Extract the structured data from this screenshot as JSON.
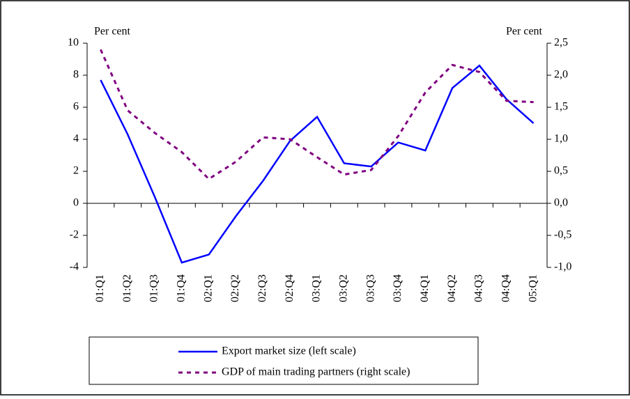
{
  "chart_data": {
    "type": "line",
    "y_label": "Per cent",
    "y2_label": "Per cent",
    "categories": [
      "01:Q1",
      "01:Q2",
      "01:Q3",
      "01:Q4",
      "02:Q1",
      "02:Q2",
      "02:Q3",
      "02:Q4",
      "03:Q1",
      "03:Q2",
      "03:Q3",
      "03:Q4",
      "04:Q1",
      "04:Q2",
      "04:Q3",
      "04:Q4",
      "05:Q1"
    ],
    "series": [
      {
        "name": "Export market size (left scale)",
        "color": "#0000ff",
        "values": [
          7.7,
          4.3,
          0.4,
          -3.7,
          -3.2,
          -0.8,
          1.4,
          3.9,
          5.4,
          2.5,
          2.3,
          3.8,
          3.3,
          7.2,
          8.6,
          6.5,
          5.0
        ]
      },
      {
        "name": "GDP of main trading partners (right scale)",
        "color": "#800080",
        "axis": "y2",
        "values": [
          2.4,
          1.45,
          1.1,
          0.8,
          0.38,
          0.65,
          1.03,
          1.0,
          0.72,
          0.45,
          0.52,
          1.05,
          1.73,
          2.16,
          2.05,
          1.6,
          1.58
        ]
      }
    ],
    "ylim": [
      -4,
      10
    ],
    "yticks": [
      -4,
      -2,
      0,
      2,
      4,
      6,
      8,
      10
    ],
    "y2lim": [
      -1,
      2.5
    ],
    "y2ticks": [
      {
        "value": -1,
        "label": "-1,0"
      },
      {
        "value": -0.5,
        "label": "-0,5"
      },
      {
        "value": 0,
        "label": "0,0"
      },
      {
        "value": 0.5,
        "label": "0,5"
      },
      {
        "value": 1,
        "label": "1,0"
      },
      {
        "value": 1.5,
        "label": "1,5"
      },
      {
        "value": 2,
        "label": "2,0"
      },
      {
        "value": 2.5,
        "label": "2,5"
      }
    ],
    "grid": false
  }
}
